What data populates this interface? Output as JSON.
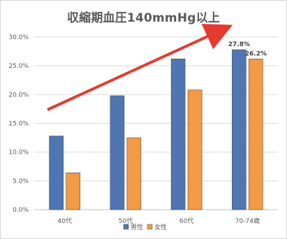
{
  "chart_data": {
    "type": "bar",
    "title": "収縮期血圧140mmHg以上",
    "categories": [
      "40代",
      "50代",
      "60代",
      "70-74歳"
    ],
    "series": [
      {
        "name": "男性",
        "values": [
          12.8,
          19.8,
          26.2,
          27.8
        ],
        "color": "#4f76b3"
      },
      {
        "name": "女性",
        "values": [
          6.4,
          12.5,
          20.8,
          26.2
        ],
        "color": "#f39a45"
      }
    ],
    "data_labels": [
      {
        "series": 0,
        "category": 3,
        "text": "27.8%"
      },
      {
        "series": 1,
        "category": 3,
        "text": "26.2%"
      }
    ],
    "yticks": [
      "0.0%",
      "5.0%",
      "10.0%",
      "15.0%",
      "20.0%",
      "25.0%",
      "30.0%"
    ],
    "ylim": [
      0,
      30
    ],
    "grid": true,
    "legend_position": "bottom",
    "annotation": {
      "type": "arrow",
      "color": "#e53a2f"
    }
  }
}
